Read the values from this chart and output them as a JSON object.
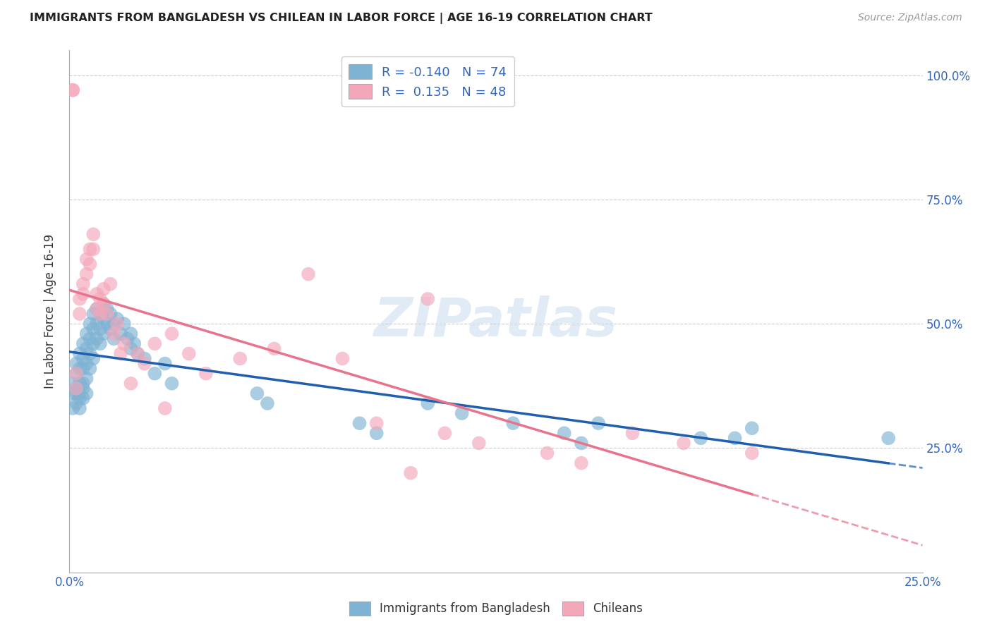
{
  "title": "IMMIGRANTS FROM BANGLADESH VS CHILEAN IN LABOR FORCE | AGE 16-19 CORRELATION CHART",
  "source": "Source: ZipAtlas.com",
  "ylabel": "In Labor Force | Age 16-19",
  "right_yticklabels": [
    "25.0%",
    "50.0%",
    "75.0%",
    "100.0%"
  ],
  "right_yticks": [
    0.25,
    0.5,
    0.75,
    1.0
  ],
  "xlim": [
    0.0,
    0.25
  ],
  "ylim": [
    0.0,
    1.05
  ],
  "watermark": "ZIPatlas",
  "blue_color": "#7FB3D3",
  "pink_color": "#F4A7B9",
  "blue_line_color": "#1F5FAD",
  "pink_line_color": "#E8738A",
  "background_color": "#FFFFFF",
  "grid_color": "#CCCCCC",
  "bangladesh_x": [
    0.001,
    0.001,
    0.001,
    0.002,
    0.002,
    0.002,
    0.002,
    0.002,
    0.003,
    0.003,
    0.003,
    0.003,
    0.003,
    0.003,
    0.004,
    0.004,
    0.004,
    0.004,
    0.004,
    0.004,
    0.005,
    0.005,
    0.005,
    0.005,
    0.005,
    0.006,
    0.006,
    0.006,
    0.006,
    0.007,
    0.007,
    0.007,
    0.007,
    0.008,
    0.008,
    0.008,
    0.009,
    0.009,
    0.009,
    0.01,
    0.01,
    0.01,
    0.011,
    0.011,
    0.012,
    0.012,
    0.013,
    0.013,
    0.014,
    0.015,
    0.016,
    0.017,
    0.018,
    0.018,
    0.019,
    0.02,
    0.022,
    0.025,
    0.028,
    0.03,
    0.055,
    0.058,
    0.085,
    0.09,
    0.105,
    0.115,
    0.13,
    0.145,
    0.15,
    0.155,
    0.185,
    0.195,
    0.2,
    0.24
  ],
  "bangladesh_y": [
    0.38,
    0.36,
    0.33,
    0.42,
    0.4,
    0.37,
    0.34,
    0.36,
    0.44,
    0.41,
    0.38,
    0.36,
    0.33,
    0.35,
    0.46,
    0.43,
    0.41,
    0.38,
    0.35,
    0.37,
    0.48,
    0.45,
    0.42,
    0.39,
    0.36,
    0.5,
    0.47,
    0.44,
    0.41,
    0.52,
    0.49,
    0.46,
    0.43,
    0.53,
    0.5,
    0.47,
    0.52,
    0.49,
    0.46,
    0.54,
    0.51,
    0.48,
    0.53,
    0.5,
    0.52,
    0.49,
    0.5,
    0.47,
    0.51,
    0.48,
    0.5,
    0.47,
    0.48,
    0.45,
    0.46,
    0.44,
    0.43,
    0.4,
    0.42,
    0.38,
    0.36,
    0.34,
    0.3,
    0.28,
    0.34,
    0.32,
    0.3,
    0.28,
    0.26,
    0.3,
    0.27,
    0.27,
    0.29,
    0.27
  ],
  "chilean_x": [
    0.001,
    0.001,
    0.002,
    0.002,
    0.003,
    0.003,
    0.004,
    0.004,
    0.005,
    0.005,
    0.006,
    0.006,
    0.007,
    0.007,
    0.008,
    0.008,
    0.009,
    0.009,
    0.01,
    0.01,
    0.011,
    0.012,
    0.013,
    0.014,
    0.015,
    0.016,
    0.018,
    0.02,
    0.022,
    0.025,
    0.028,
    0.03,
    0.035,
    0.04,
    0.05,
    0.06,
    0.07,
    0.08,
    0.09,
    0.1,
    0.105,
    0.11,
    0.12,
    0.14,
    0.15,
    0.165,
    0.18,
    0.2
  ],
  "chilean_y": [
    0.97,
    0.97,
    0.4,
    0.37,
    0.55,
    0.52,
    0.58,
    0.56,
    0.63,
    0.6,
    0.65,
    0.62,
    0.68,
    0.65,
    0.56,
    0.53,
    0.55,
    0.52,
    0.57,
    0.54,
    0.52,
    0.58,
    0.48,
    0.5,
    0.44,
    0.46,
    0.38,
    0.44,
    0.42,
    0.46,
    0.33,
    0.48,
    0.44,
    0.4,
    0.43,
    0.45,
    0.6,
    0.43,
    0.3,
    0.2,
    0.55,
    0.28,
    0.26,
    0.24,
    0.22,
    0.28,
    0.26,
    0.24
  ]
}
